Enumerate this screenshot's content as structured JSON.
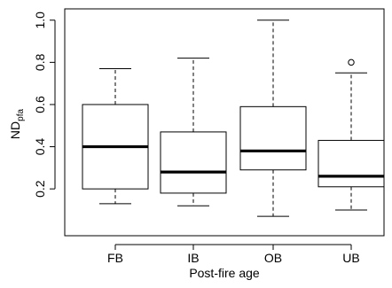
{
  "chart_data": {
    "type": "boxplot",
    "title": "",
    "xlabel": "Post-fire age",
    "ylabel": {
      "main": "ND",
      "subscript": "pfa"
    },
    "ylim": [
      0.02,
      1.02
    ],
    "yticks": [
      0.2,
      0.4,
      0.6,
      0.8,
      1.0
    ],
    "ytick_labels": [
      "0.2",
      "0.4",
      "0.6",
      "0.8",
      "1.0"
    ],
    "categories": [
      "FB",
      "IB",
      "OB",
      "UB"
    ],
    "boxes": [
      {
        "category": "FB",
        "min": 0.13,
        "q1": 0.2,
        "median": 0.4,
        "q3": 0.6,
        "max": 0.77,
        "outliers": []
      },
      {
        "category": "IB",
        "min": 0.12,
        "q1": 0.18,
        "median": 0.28,
        "q3": 0.47,
        "max": 0.82,
        "outliers": []
      },
      {
        "category": "OB",
        "min": 0.07,
        "q1": 0.29,
        "median": 0.38,
        "q3": 0.59,
        "max": 1.0,
        "outliers": []
      },
      {
        "category": "UB",
        "min": 0.1,
        "q1": 0.21,
        "median": 0.26,
        "q3": 0.43,
        "max": 0.75,
        "outliers": [
          0.8
        ]
      }
    ],
    "grid": false,
    "legend": "none",
    "colors": {
      "box_fill": "#ffffff",
      "stroke": "#000000",
      "median": "#000000"
    }
  }
}
